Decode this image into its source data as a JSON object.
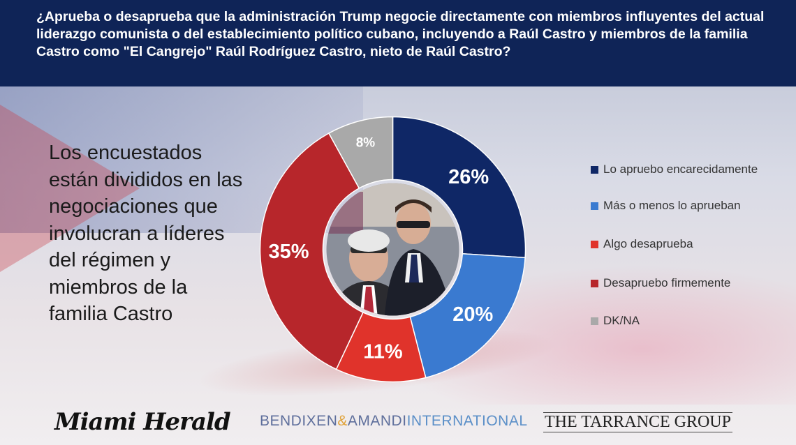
{
  "header": {
    "question": "¿Aprueba o desaprueba que la administración Trump negocie directamente con miembros influyentes del actual liderazgo comunista o del establecimiento político cubano, incluyendo a Raúl Castro y miembros de la familia Castro como \"El Cangrejo\" Raúl Rodríguez Castro, nieto de Raúl Castro?"
  },
  "subtitle": "Los encuestados están divididos en las negociaciones que involucran a líderes del régimen y miembros de la familia Castro",
  "chart_data": {
    "type": "pie",
    "donut": true,
    "title": "",
    "legend_position": "right",
    "series": [
      {
        "name": "Lo apruebo encarecidamente",
        "value": 26,
        "label": "26%",
        "color": "#0f2766"
      },
      {
        "name": "Más o menos lo aprueban",
        "value": 20,
        "label": "20%",
        "color": "#3a7ad0"
      },
      {
        "name": "Algo desaprueba",
        "value": 11,
        "label": "11%",
        "color": "#e0332b"
      },
      {
        "name": "Desapruebo firmemente",
        "value": 35,
        "label": "35%",
        "color": "#b7262b"
      },
      {
        "name": "DK/NA",
        "value": 8,
        "label": "8%",
        "color": "#a9a9a9"
      }
    ]
  },
  "logos": {
    "miami_herald": "Miami Herald",
    "bendixen": "BENDIXEN",
    "amp": "&",
    "amandi": "AMANDI",
    "international": "INTERNATIONAL",
    "tarrance": "THE TARRANCE GROUP"
  }
}
